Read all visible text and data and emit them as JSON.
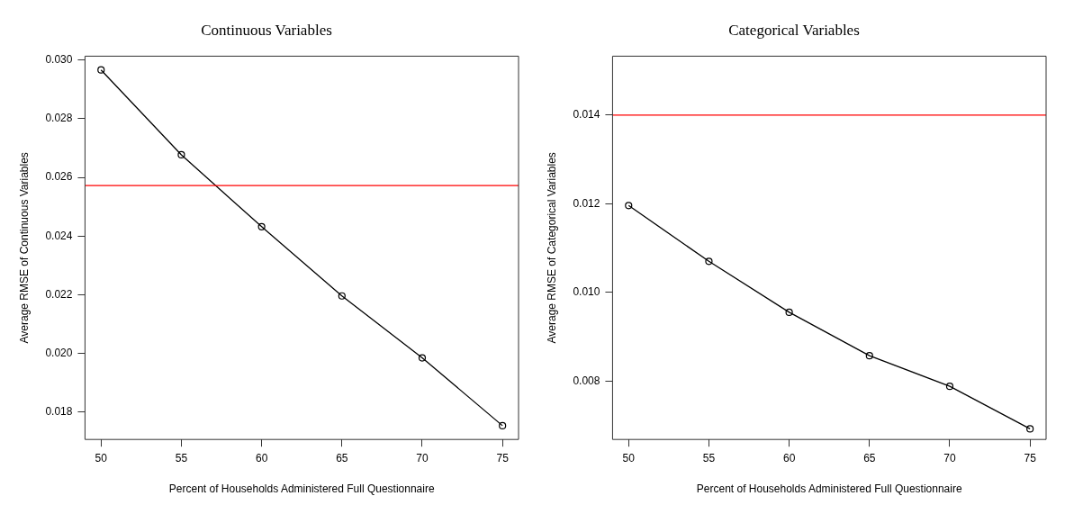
{
  "chart_data": [
    {
      "type": "line",
      "title": "Continuous Variables",
      "xlabel": "Percent of Households Administered Full Questionnaire",
      "ylabel": "Average RMSE of Continuous Variables",
      "x": [
        50,
        55,
        60,
        65,
        70,
        75
      ],
      "xlim": [
        49,
        76
      ],
      "xticks": [
        50,
        55,
        60,
        65,
        70,
        75
      ],
      "ylim": [
        0.01707,
        0.03013
      ],
      "yticks": [
        0.018,
        {
          "value": 0.02,
          "label": "0.020"
        },
        0.022,
        0.024,
        0.026,
        0.028,
        {
          "value": 0.03,
          "label": "0.030"
        }
      ],
      "marker": "circle",
      "series": [
        {
          "color": "#000000",
          "values": [
            0.02966,
            0.02677,
            0.02432,
            0.02196,
            0.01985,
            0.01754
          ]
        }
      ],
      "ref_lines": [
        {
          "axis": "y",
          "value": 0.02572,
          "color": "#ff0000"
        }
      ]
    },
    {
      "type": "line",
      "title": "Categorical Variables",
      "xlabel": "Percent of Households Administered Full Questionnaire",
      "ylabel": "Average RMSE of Categorical Variables",
      "x": [
        50,
        55,
        60,
        65,
        70,
        75
      ],
      "xlim": [
        49,
        76
      ],
      "xticks": [
        50,
        55,
        60,
        65,
        70,
        75
      ],
      "ylim": [
        0.00668,
        0.01533
      ],
      "yticks": [
        0.008,
        {
          "value": 0.01,
          "label": "0.010"
        },
        0.012,
        0.014
      ],
      "marker": "circle",
      "series": [
        {
          "color": "#000000",
          "values": [
            0.01196,
            0.0107,
            0.00955,
            0.00857,
            0.00788,
            0.00692
          ]
        }
      ],
      "ref_lines": [
        {
          "axis": "y",
          "value": 0.014,
          "color": "#ff0000"
        }
      ]
    }
  ]
}
